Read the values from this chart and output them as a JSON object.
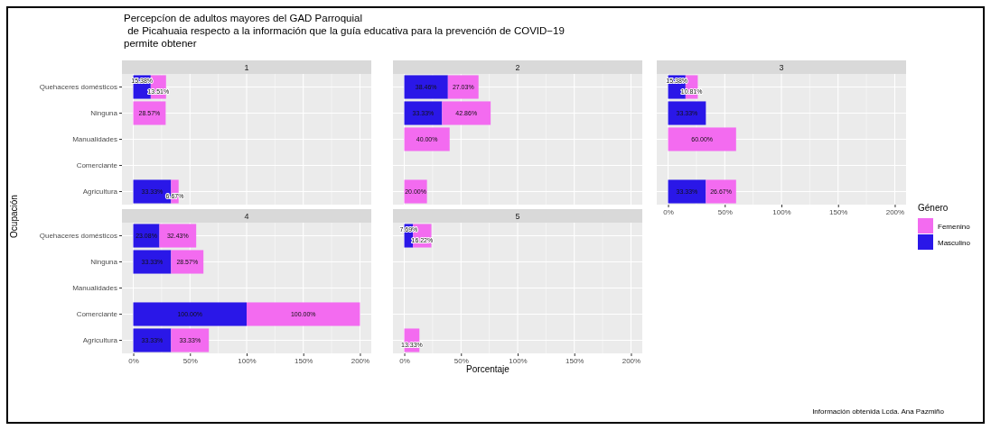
{
  "chart_data": [
    {
      "type": "bar",
      "title": "Percepcíon de adultos mayores del GAD Parroquial\n de Picahuaia respecto a la información que la guía educativa para la prevención de COVID−19\npermite obtener",
      "subtitle": "1",
      "ylabel": "Ocupación",
      "orientation": "horizontal",
      "stacked": true,
      "grid": true,
      "tick_labels": "y",
      "categories": [
        "Quehaceres domésticos",
        "Ninguna",
        "Manualidades",
        "Comerciante",
        "Agricultura"
      ],
      "xlim": [
        -10,
        210
      ],
      "xticks": [
        {
          "value": 0,
          "label": null
        },
        {
          "value": 50,
          "label": null
        },
        {
          "value": 100,
          "label": null
        },
        {
          "value": 150,
          "label": null
        },
        {
          "value": 200,
          "label": null
        }
      ],
      "series": [
        {
          "color": "#2a17e8",
          "values": [
            15.38,
            null,
            null,
            null,
            33.33
          ],
          "value_labels": [
            "15.38%",
            null,
            null,
            null,
            "33.33%"
          ]
        },
        {
          "color": "#f36bf0",
          "values": [
            13.51,
            28.57,
            null,
            null,
            6.67
          ],
          "value_labels": [
            "13.51%",
            "28.57%",
            null,
            null,
            "6.67%"
          ]
        }
      ]
    },
    {
      "type": "bar",
      "subtitle": "2",
      "orientation": "horizontal",
      "stacked": true,
      "grid": true,
      "tick_labels": false,
      "categories": [
        null,
        null,
        null,
        null,
        null
      ],
      "xlim": [
        -10,
        210
      ],
      "xticks": [
        {
          "value": 0,
          "label": null
        },
        {
          "value": 50,
          "label": null
        },
        {
          "value": 100,
          "label": null
        },
        {
          "value": 150,
          "label": null
        },
        {
          "value": 200,
          "label": null
        }
      ],
      "series": [
        {
          "color": "#2a17e8",
          "values": [
            38.46,
            33.33,
            null,
            null,
            null
          ],
          "value_labels": [
            "38.46%",
            "33.33%",
            null,
            null,
            null
          ]
        },
        {
          "color": "#f36bf0",
          "values": [
            27.03,
            42.86,
            40.0,
            null,
            20.0
          ],
          "value_labels": [
            "27.03%",
            "42.86%",
            "40.00%",
            null,
            "20.00%"
          ]
        }
      ]
    },
    {
      "type": "bar",
      "subtitle": "3",
      "legend": "right",
      "legend_title": "Género",
      "orientation": "horizontal",
      "stacked": true,
      "grid": true,
      "tick_labels": "x",
      "categories": [
        null,
        null,
        null,
        null,
        null
      ],
      "xlim": [
        -10,
        210
      ],
      "xticks": [
        {
          "value": 0,
          "label": "0%"
        },
        {
          "value": 50,
          "label": "50%"
        },
        {
          "value": 100,
          "label": "100%"
        },
        {
          "value": 150,
          "label": "150%"
        },
        {
          "value": 200,
          "label": "200%"
        }
      ],
      "series": [
        {
          "name": "Masculino",
          "color": "#2a17e8",
          "values": [
            15.38,
            33.33,
            null,
            null,
            33.33
          ],
          "value_labels": [
            "15.38%",
            "33.33%",
            null,
            null,
            "33.33%"
          ]
        },
        {
          "name": "Femenino",
          "color": "#f36bf0",
          "values": [
            10.81,
            null,
            60.0,
            null,
            26.67
          ],
          "value_labels": [
            "10.81%",
            null,
            "60.00%",
            null,
            "26.67%"
          ]
        }
      ]
    },
    {
      "type": "bar",
      "subtitle": "4",
      "orientation": "horizontal",
      "stacked": true,
      "grid": true,
      "categories": [
        "Quehaceres domésticos",
        "Ninguna",
        "Manualidades",
        "Comerciante",
        "Agricultura"
      ],
      "xlim": [
        -10,
        210
      ],
      "xticks": [
        {
          "value": 0,
          "label": "0%"
        },
        {
          "value": 50,
          "label": "50%"
        },
        {
          "value": 100,
          "label": "100%"
        },
        {
          "value": 150,
          "label": "150%"
        },
        {
          "value": 200,
          "label": "200%"
        }
      ],
      "series": [
        {
          "color": "#2a17e8",
          "values": [
            23.08,
            33.33,
            null,
            100.0,
            33.33
          ],
          "value_labels": [
            "23.08%",
            "33.33%",
            null,
            "100.00%",
            "33.33%"
          ]
        },
        {
          "color": "#f36bf0",
          "values": [
            32.43,
            28.57,
            null,
            100.0,
            33.33
          ],
          "value_labels": [
            "32.43%",
            "28.57%",
            null,
            "100.00%",
            "33.33%"
          ]
        }
      ]
    },
    {
      "type": "bar",
      "subtitle": "5",
      "xlabel": "Porcentaje",
      "annotations": [
        "Información obtenida Lcda. Ana Pazmiño"
      ],
      "orientation": "horizontal",
      "stacked": true,
      "grid": true,
      "tick_labels": "x",
      "categories": [
        null,
        null,
        null,
        null,
        null
      ],
      "xlim": [
        -10,
        210
      ],
      "xticks": [
        {
          "value": 0,
          "label": "0%"
        },
        {
          "value": 50,
          "label": "50%"
        },
        {
          "value": 100,
          "label": "100%"
        },
        {
          "value": 150,
          "label": "150%"
        },
        {
          "value": 200,
          "label": "200%"
        }
      ],
      "series": [
        {
          "color": "#2a17e8",
          "values": [
            7.69,
            null,
            null,
            null,
            null
          ],
          "value_labels": [
            "7.69%",
            null,
            null,
            null,
            null
          ]
        },
        {
          "color": "#f36bf0",
          "values": [
            16.22,
            null,
            null,
            null,
            13.33
          ],
          "value_labels": [
            "16.22%",
            null,
            null,
            null,
            "13.33%"
          ]
        }
      ]
    }
  ]
}
